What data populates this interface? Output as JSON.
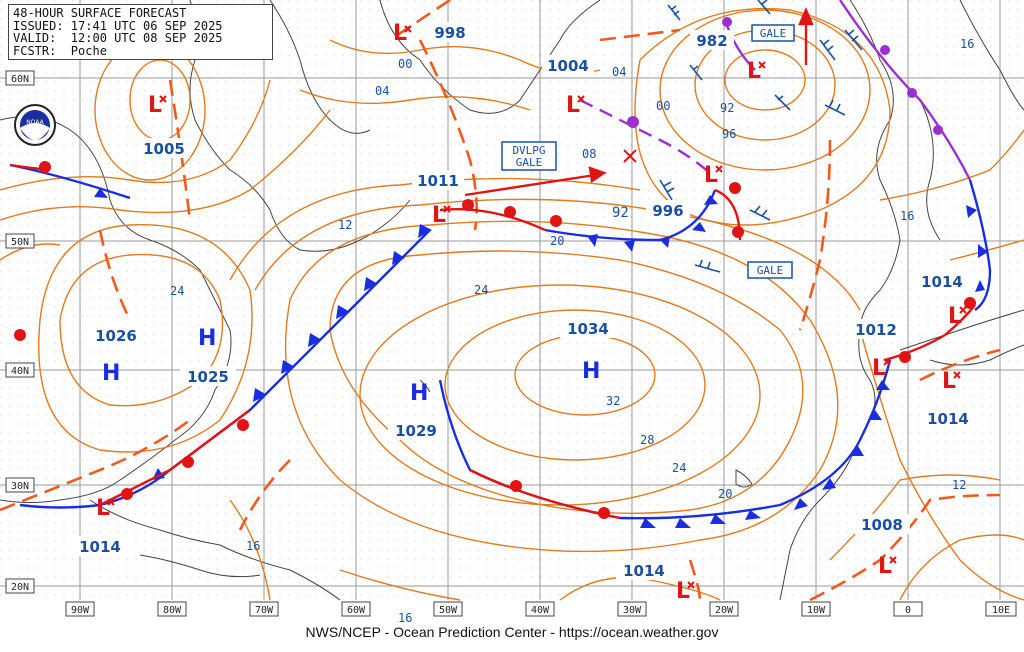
{
  "header": {
    "line1": "48-HOUR SURFACE FORECAST",
    "line2": "ISSUED: 17:41 UTC 06 SEP 2025",
    "line3": "VALID:  12:00 UTC 08 SEP 2025",
    "line4": "FCSTR:  Poche"
  },
  "footer": "NWS/NCEP - Ocean Prediction Center - https://ocean.weather.gov",
  "logo": {
    "text": "NOAA",
    "icon": "noaa-logo-icon"
  },
  "lat_labels": [
    "60N",
    "50N",
    "40N",
    "30N",
    "20N"
  ],
  "lon_labels": [
    "90W",
    "80W",
    "70W",
    "60W",
    "50W",
    "40W",
    "30W",
    "20W",
    "10W",
    "0",
    "10E"
  ],
  "pressure_centers": [
    {
      "type": "L",
      "value": "998"
    },
    {
      "type": "L",
      "value": "982"
    },
    {
      "type": "L",
      "value": "1005"
    },
    {
      "type": "L",
      "value": "1004"
    },
    {
      "type": "L",
      "value": "1011"
    },
    {
      "type": "L",
      "value": "996"
    },
    {
      "type": "H",
      "value": "1026"
    },
    {
      "type": "H",
      "value": "1025"
    },
    {
      "type": "H",
      "value": "1034"
    },
    {
      "type": "H",
      "value": "1029"
    },
    {
      "type": "L",
      "value": "1014"
    },
    {
      "type": "L",
      "value": "1014"
    },
    {
      "type": "L",
      "value": "1014"
    },
    {
      "type": "L",
      "value": "1014"
    },
    {
      "type": "L",
      "value": "1012"
    },
    {
      "type": "L",
      "value": "1008"
    }
  ],
  "isobar_labels": [
    "00",
    "04",
    "04",
    "00",
    "08",
    "92",
    "96",
    "92",
    "12",
    "16",
    "16",
    "16",
    "16",
    "20",
    "20",
    "24",
    "24",
    "24",
    "28",
    "32",
    "12"
  ],
  "warnings": {
    "gale_1": "GALE",
    "gale_2": "GALE",
    "dvlpg_line1": "DVLPG",
    "dvlpg_line2": "GALE"
  },
  "colors": {
    "isobar": "#e07b20",
    "cold_front": "#1a2ee0",
    "warm_front": "#e01414",
    "occluded_front": "#9b30d0",
    "trough": "#f05a1e",
    "low_symbol": "#e01414",
    "high_symbol": "#1a2ee0",
    "value_text": "#1a50a0",
    "grid": "#9a9a9a",
    "coast": "#444444"
  }
}
